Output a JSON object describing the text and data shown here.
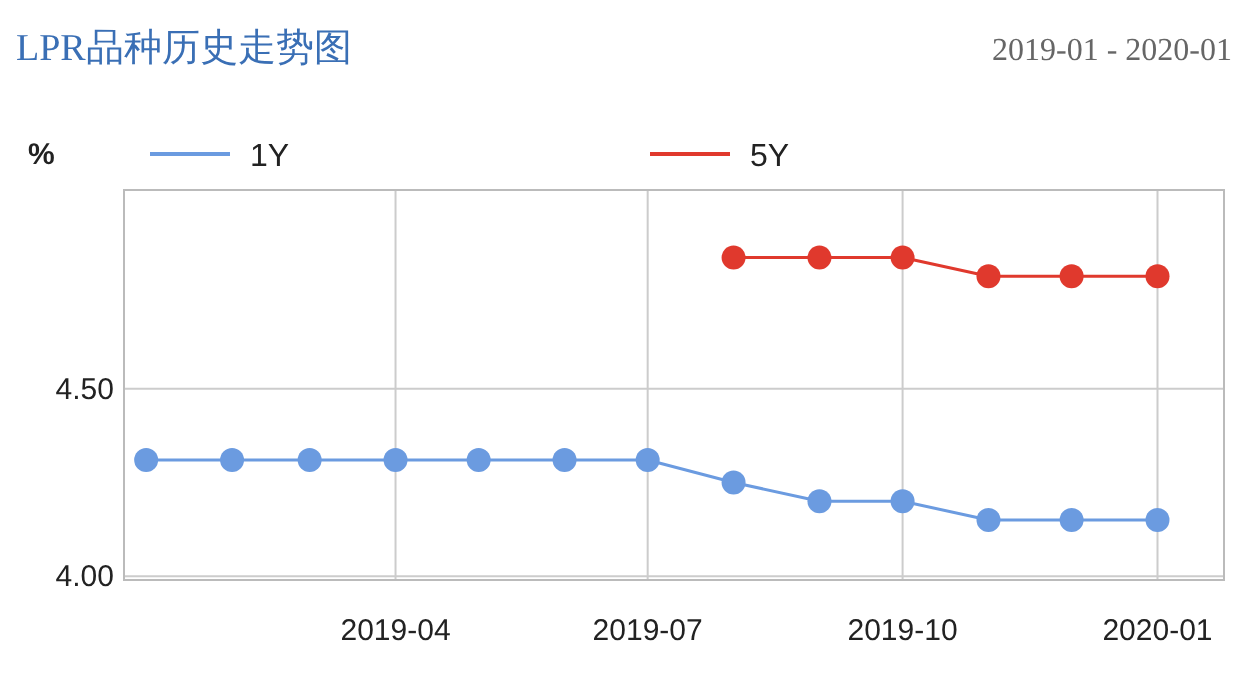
{
  "chart_data": {
    "type": "line",
    "title": "LPR品种历史走势图",
    "subtitle": "2019-01 - 2020-01",
    "ylabel": "%",
    "x": [
      "2019-01",
      "2019-02",
      "2019-03",
      "2019-04",
      "2019-05",
      "2019-06",
      "2019-07",
      "2019-08",
      "2019-09",
      "2019-10",
      "2019-11",
      "2019-12",
      "2020-01"
    ],
    "series": [
      {
        "name": "1Y",
        "color": "#6b9be0",
        "values": [
          4.31,
          4.31,
          4.31,
          4.31,
          4.31,
          4.31,
          4.31,
          4.25,
          4.2,
          4.2,
          4.15,
          4.15,
          4.15
        ]
      },
      {
        "name": "5Y",
        "color": "#e0392d",
        "values": [
          null,
          null,
          null,
          null,
          null,
          null,
          null,
          4.85,
          4.85,
          4.85,
          4.8,
          4.8,
          4.8
        ]
      }
    ],
    "xlim": [
      "2018-12-24",
      "2020-01-25"
    ],
    "xticks": [
      {
        "value": "2019-04",
        "label": "2019-04"
      },
      {
        "value": "2019-07",
        "label": "2019-07"
      },
      {
        "value": "2019-10",
        "label": "2019-10"
      },
      {
        "value": "2020-01",
        "label": "2020-01"
      }
    ],
    "ylim": [
      3.99,
      5.03
    ],
    "yticks": [
      {
        "value": 4.0,
        "label": "4.00"
      },
      {
        "value": 4.5,
        "label": "4.50"
      }
    ],
    "grid": true,
    "legend": "top",
    "marker": "circle",
    "line_style": "solid"
  }
}
